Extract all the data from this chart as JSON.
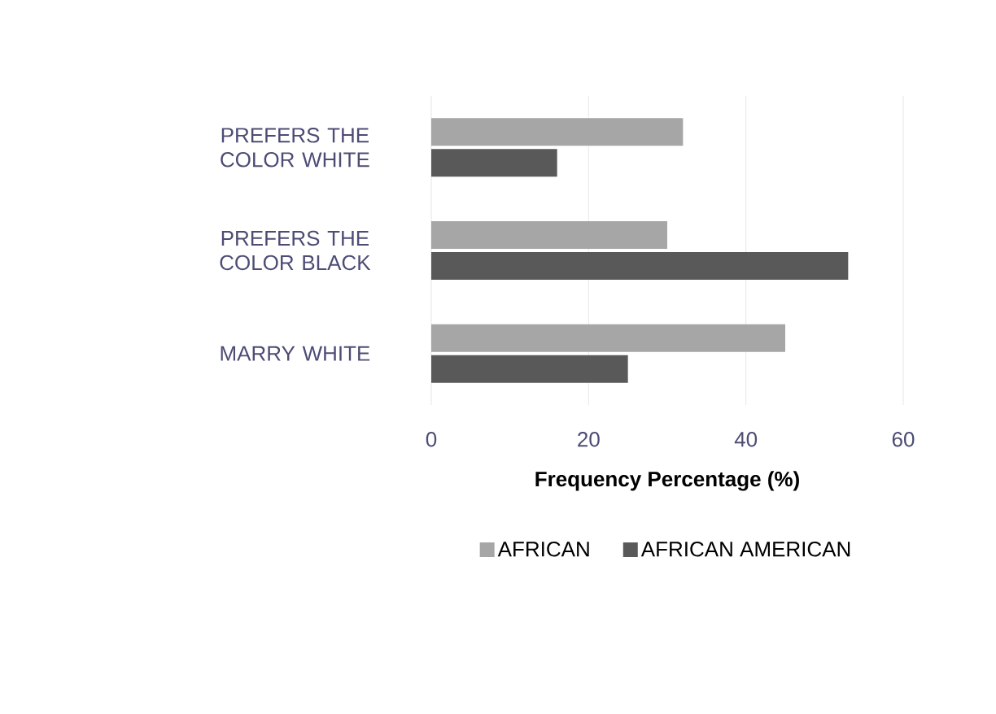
{
  "chart_data": {
    "type": "bar",
    "orientation": "horizontal",
    "xlabel": "Frequency Percentage (%)",
    "categories": [
      "PREFERS THE COLOR WHITE",
      "PREFERS THE COLOR BLACK",
      "MARRY WHITE"
    ],
    "series": [
      {
        "name": "AFRICAN",
        "color": "#a6a6a6",
        "values": [
          32,
          30,
          45
        ]
      },
      {
        "name": "AFRICAN AMERICAN",
        "color": "#595959",
        "values": [
          16,
          53,
          25
        ]
      }
    ],
    "xlim": [
      0,
      60
    ],
    "xticks": [
      0,
      20,
      40,
      60
    ],
    "grid": "x",
    "legend": "bottom"
  }
}
